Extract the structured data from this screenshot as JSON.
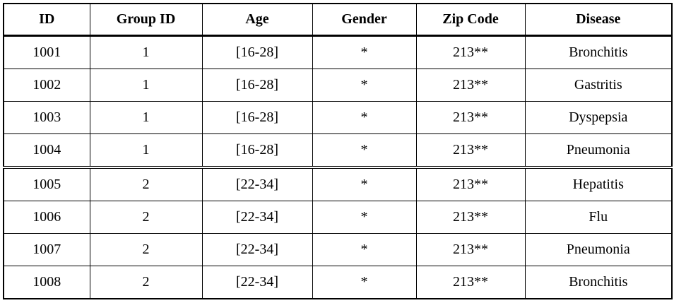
{
  "table": {
    "header": [
      "ID",
      "Group ID",
      "Age",
      "Gender",
      "Zip Code",
      "Disease"
    ],
    "rows": [
      [
        "1001",
        "1",
        "[16-28]",
        "*",
        "213**",
        "Bronchitis"
      ],
      [
        "1002",
        "1",
        "[16-28]",
        "*",
        "213**",
        "Gastritis"
      ],
      [
        "1003",
        "1",
        "[16-28]",
        "*",
        "213**",
        "Dyspepsia"
      ],
      [
        "1004",
        "1",
        "[16-28]",
        "*",
        "213**",
        "Pneumonia"
      ],
      [
        "1005",
        "2",
        "[22-34]",
        "*",
        "213**",
        "Hepatitis"
      ],
      [
        "1006",
        "2",
        "[22-34]",
        "*",
        "213**",
        "Flu"
      ],
      [
        "1007",
        "2",
        "[22-34]",
        "*",
        "213**",
        "Pneumonia"
      ],
      [
        "1008",
        "2",
        "[22-34]",
        "*",
        "213**",
        "Bronchitis"
      ]
    ]
  }
}
